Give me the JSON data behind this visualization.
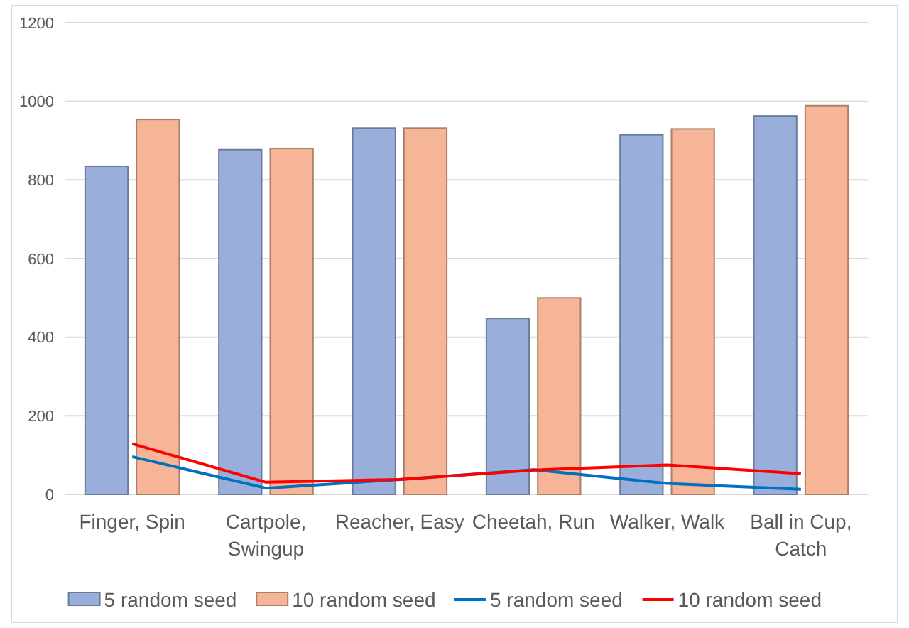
{
  "chart_data": {
    "type": "bar",
    "categories": [
      "Finger, Spin",
      "Cartpole, Swingup",
      "Reacher, Easy",
      "Cheetah, Run",
      "Walker, Walk",
      "Ball in Cup, Catch"
    ],
    "series": [
      {
        "name": "5 random seed",
        "color": "#9aaedc",
        "values": [
          835,
          877,
          932,
          448,
          915,
          963
        ]
      },
      {
        "name": "10 random seed",
        "color": "#f5b596",
        "values": [
          954,
          880,
          932,
          500,
          930,
          989
        ]
      },
      {
        "name": "5 random seed",
        "type": "line",
        "color": "#0070c0",
        "values": [
          96,
          16,
          38,
          63,
          28,
          13
        ]
      },
      {
        "name": "10 random seed",
        "type": "line",
        "color": "#ff0000",
        "values": [
          129,
          31,
          38,
          62,
          75,
          53
        ]
      }
    ],
    "ylim": [
      0,
      1200
    ],
    "yticks": [
      0,
      200,
      400,
      600,
      800,
      1000,
      1200
    ],
    "grid": "y",
    "legend": "bottom",
    "marker": "none"
  }
}
